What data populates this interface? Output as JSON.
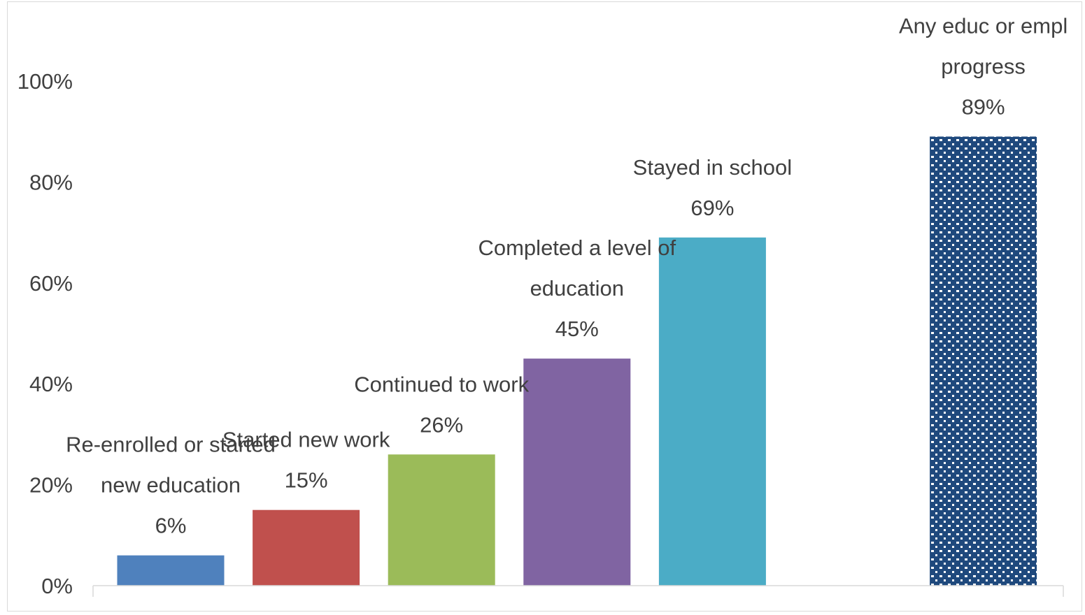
{
  "chart_data": {
    "type": "bar",
    "categories": [
      "Re-enrolled or started new education",
      "Started new work",
      "Continued to work",
      "Completed a level of education",
      "Stayed in school",
      "Any educ or empl progress"
    ],
    "values": [
      6,
      15,
      26,
      45,
      69,
      89
    ],
    "value_labels": [
      "6%",
      "15%",
      "26%",
      "45%",
      "69%",
      "89%"
    ],
    "label_lines": [
      [
        "Re-enrolled or started",
        "new education"
      ],
      [
        "Started new work"
      ],
      [
        "Continued to work"
      ],
      [
        "Completed a level of",
        "education"
      ],
      [
        "Stayed in school"
      ],
      [
        "Any educ or empl",
        "progress"
      ]
    ],
    "colors": [
      "#4f81bd",
      "#c0504d",
      "#9bbb59",
      "#8064a2",
      "#4bacc6",
      "#1f497d"
    ],
    "pattern": [
      false,
      false,
      false,
      false,
      false,
      true
    ],
    "ylim": [
      0,
      100
    ],
    "yticks": [
      0,
      20,
      40,
      60,
      80,
      100
    ],
    "ytick_labels": [
      "0%",
      "20%",
      "40%",
      "60%",
      "80%",
      "100%"
    ],
    "grid": false,
    "legend": "none",
    "title": "",
    "xlabel": "",
    "ylabel": ""
  }
}
